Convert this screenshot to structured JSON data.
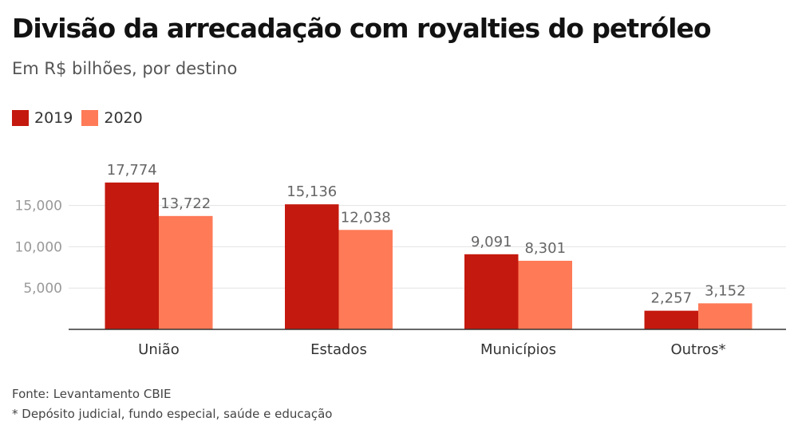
{
  "header": {
    "title": "Divisão da arrecadação com royalties do petróleo",
    "subtitle": "Em R$ bilhões, por destino"
  },
  "footer": {
    "source": "Fonte: Levantamento CBIE",
    "note": "* Depósito judicial, fundo especial, saúde e educação"
  },
  "chart_data": {
    "type": "bar",
    "title": "Divisão da arrecadação com royalties do petróleo",
    "subtitle": "Em R$ bilhões, por destino",
    "xlabel": "",
    "ylabel": "",
    "categories": [
      "União",
      "Estados",
      "Municípios",
      "Outros*"
    ],
    "series": [
      {
        "name": "2019",
        "color": "#c4190e",
        "values": [
          17774,
          15136,
          9091,
          2257
        ],
        "labels": [
          "17,774",
          "15,136",
          "9,091",
          "2,257"
        ]
      },
      {
        "name": "2020",
        "color": "#ff7a57",
        "values": [
          13722,
          12038,
          8301,
          3152
        ],
        "labels": [
          "13,722",
          "12,038",
          "8,301",
          "3,152"
        ]
      }
    ],
    "yticks": [
      5000,
      10000,
      15000
    ],
    "ytick_labels": [
      "5,000",
      "10,000",
      "15,000"
    ],
    "ylim": [
      0,
      20000
    ],
    "grid": true,
    "legend": "top-left"
  }
}
